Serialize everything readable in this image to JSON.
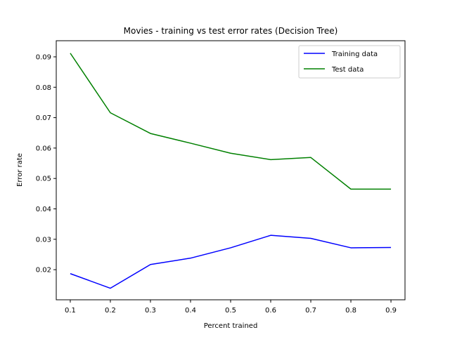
{
  "chart_data": {
    "type": "line",
    "title": "Movies - training vs test error rates (Decision Tree)",
    "xlabel": "Percent trained",
    "ylabel": "Error rate",
    "x": [
      0.1,
      0.2,
      0.3,
      0.4,
      0.5,
      0.6,
      0.7,
      0.8,
      0.9
    ],
    "xlim": [
      0.065,
      0.935
    ],
    "ylim": [
      0.0101,
      0.0953
    ],
    "xticks": [
      0.1,
      0.2,
      0.3,
      0.4,
      0.5,
      0.6,
      0.7,
      0.8,
      0.9
    ],
    "xtick_labels": [
      "0.1",
      "0.2",
      "0.3",
      "0.4",
      "0.5",
      "0.6",
      "0.7",
      "0.8",
      "0.9"
    ],
    "yticks": [
      0.02,
      0.03,
      0.04,
      0.05,
      0.06,
      0.07,
      0.08,
      0.09
    ],
    "ytick_labels": [
      "0.02",
      "0.03",
      "0.04",
      "0.05",
      "0.06",
      "0.07",
      "0.08",
      "0.09"
    ],
    "grid": false,
    "legend_position": "top-right",
    "series": [
      {
        "name": "Training data",
        "color": "#0000ff",
        "values": [
          0.0187,
          0.0139,
          0.0217,
          0.0238,
          0.0272,
          0.0313,
          0.0303,
          0.0272,
          0.0273
        ]
      },
      {
        "name": "Test data",
        "color": "#008000",
        "values": [
          0.0912,
          0.0716,
          0.0648,
          0.0616,
          0.0583,
          0.0562,
          0.0569,
          0.0465,
          0.0465
        ]
      }
    ]
  }
}
